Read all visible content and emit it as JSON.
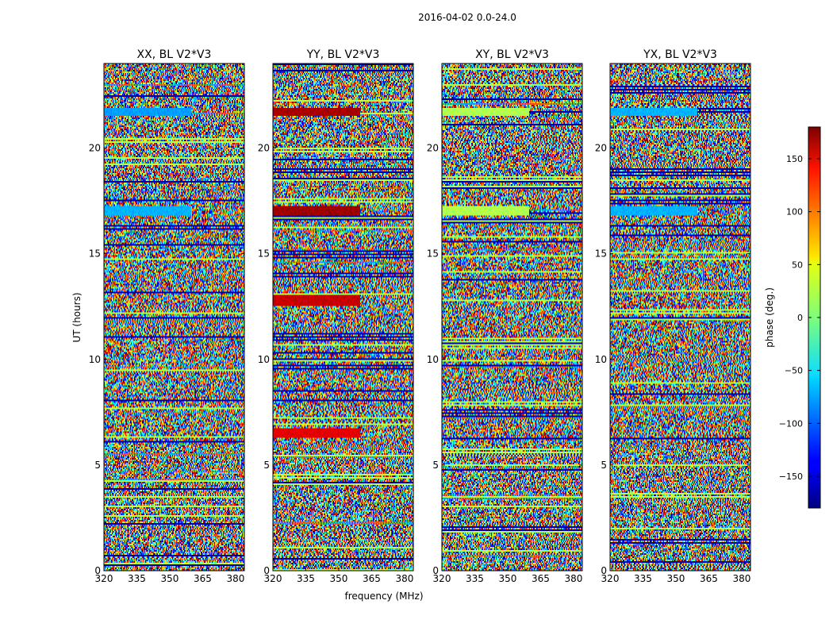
{
  "figure": {
    "suptitle": "2016-04-02 0.0-24.0",
    "xlabel": "frequency (MHz)",
    "ylabel": "UT (hours)"
  },
  "chart_data": {
    "type": "heatmap",
    "xlim": [
      320,
      384
    ],
    "ylim": [
      0,
      24
    ],
    "xticks": [
      320,
      335,
      350,
      365,
      380
    ],
    "yticks": [
      0,
      5,
      10,
      15,
      20
    ],
    "vlim": [
      -180,
      180
    ],
    "colormap": "jet",
    "panels": [
      {
        "title": "XX, BL V2*V3"
      },
      {
        "title": "YY, BL V2*V3"
      },
      {
        "title": "XY, BL V2*V3"
      },
      {
        "title": "YX, BL V2*V3"
      }
    ],
    "colorbar": {
      "label": "phase (deg.)",
      "ticks": [
        150,
        100,
        50,
        0,
        -50,
        -100,
        -150
      ],
      "tick_labels": [
        "150",
        "100",
        "50",
        "0",
        "−50",
        "−100",
        "−150"
      ]
    }
  }
}
